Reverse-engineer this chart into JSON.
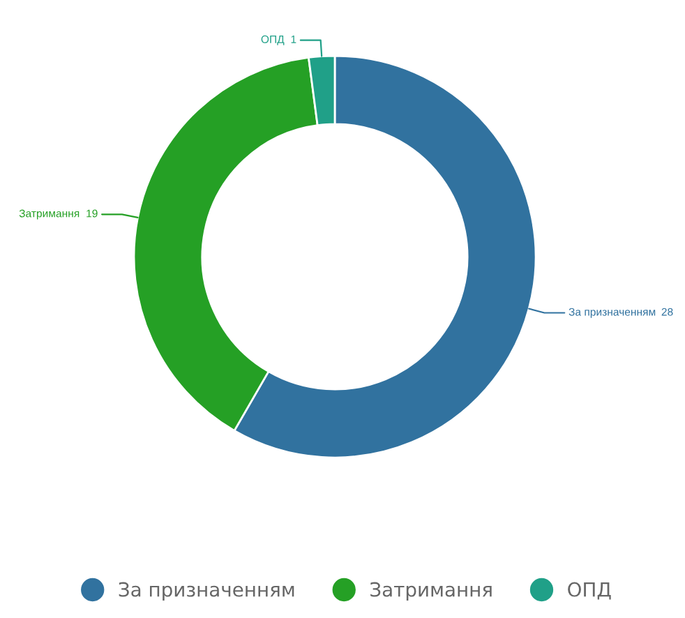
{
  "chart_data": {
    "type": "donut",
    "categories": [
      "За призначенням",
      "Затримання",
      "ОПД"
    ],
    "values": [
      28,
      19,
      1
    ],
    "colors": [
      "#31729f",
      "#25a025",
      "#20a088"
    ],
    "data_labels": true,
    "legend": "bottom"
  }
}
